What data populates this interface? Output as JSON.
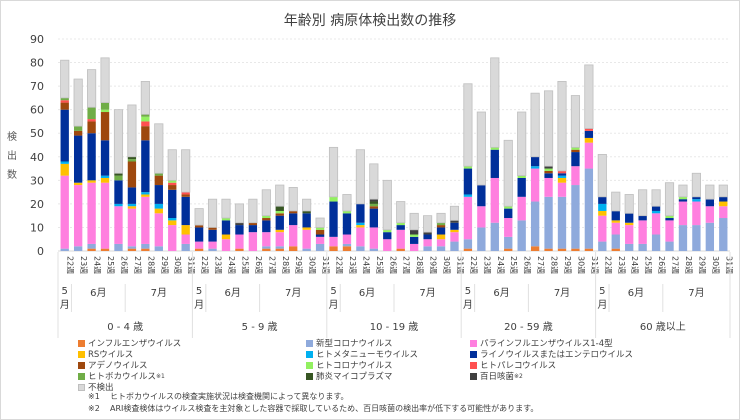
{
  "chart_data": {
    "type": "bar",
    "stacked": true,
    "title": "年齢別 病原体検出数の推移",
    "ylabel": "検出数",
    "xlabel": "",
    "ylim": [
      0,
      90
    ],
    "yticks": [
      0,
      10,
      20,
      30,
      40,
      50,
      60,
      70,
      80,
      90
    ],
    "grid": true,
    "legend_position": "bottom",
    "groups": [
      "0 - 4 歳",
      "5 - 9 歳",
      "10 - 19 歳",
      "20 - 59 歳",
      "60 歳以上"
    ],
    "weeks": [
      "22週",
      "23週",
      "24週",
      "25週",
      "26週",
      "27週",
      "28週",
      "29週",
      "30週",
      "31週"
    ],
    "months": [
      {
        "label": "5月",
        "weeks": 1
      },
      {
        "label": "6月",
        "weeks": 4
      },
      {
        "label": "7月",
        "weeks": 5
      }
    ],
    "series": [
      {
        "name": "インフルエンザウイルス",
        "color": "#ED7D31",
        "values": [
          [
            0,
            0,
            1,
            1,
            0,
            1,
            1,
            0,
            0,
            0
          ],
          [
            1,
            0,
            0,
            1,
            0,
            1,
            1,
            2,
            0,
            0
          ],
          [
            2,
            2,
            0,
            0,
            0,
            1,
            0,
            0,
            0,
            0
          ],
          [
            1,
            0,
            0,
            1,
            0,
            2,
            1,
            1,
            1,
            1
          ],
          [
            0,
            1,
            0,
            0,
            0,
            0,
            0,
            0,
            0,
            0
          ]
        ]
      },
      {
        "name": "新型コロナウイルス",
        "color": "#8FAADC",
        "values": [
          [
            1,
            2,
            2,
            0,
            3,
            1,
            2,
            2,
            0,
            3
          ],
          [
            0,
            1,
            0,
            0,
            0,
            1,
            1,
            0,
            1,
            3
          ],
          [
            0,
            1,
            2,
            1,
            0,
            0,
            0,
            2,
            2,
            4
          ],
          [
            4,
            10,
            12,
            5,
            13,
            19,
            22,
            22,
            27,
            34
          ],
          [
            4,
            6,
            3,
            3,
            7,
            4,
            11,
            11,
            12,
            14
          ]
        ]
      },
      {
        "name": "パラインフルエンザウイルス1-4型",
        "color": "#FF7FDF",
        "values": [
          [
            31,
            26,
            26,
            28,
            16,
            16,
            20,
            14,
            11,
            4
          ],
          [
            3,
            3,
            5,
            6,
            8,
            6,
            6,
            9,
            8,
            3
          ],
          [
            4,
            4,
            8,
            9,
            5,
            8,
            3,
            3,
            3,
            4
          ],
          [
            18,
            9,
            19,
            8,
            10,
            14,
            8,
            6,
            8,
            11
          ],
          [
            11,
            5,
            8,
            10,
            9,
            9,
            10,
            10,
            7,
            5
          ]
        ]
      },
      {
        "name": "RSウイルス",
        "color": "#FFC000",
        "values": [
          [
            5,
            1,
            1,
            2,
            0,
            1,
            1,
            2,
            2,
            4
          ],
          [
            0,
            0,
            2,
            0,
            0,
            0,
            1,
            0,
            1,
            0
          ],
          [
            0,
            0,
            1,
            0,
            0,
            0,
            0,
            0,
            2,
            1
          ],
          [
            0,
            0,
            0,
            0,
            0,
            0,
            0,
            2,
            0,
            2
          ],
          [
            2,
            1,
            1,
            0,
            0,
            0,
            0,
            0,
            0,
            2
          ]
        ]
      },
      {
        "name": "ヒトメタニューモウイルス",
        "color": "#00B0F0",
        "values": [
          [
            1,
            0,
            0,
            1,
            1,
            1,
            1,
            2,
            1,
            0
          ],
          [
            0,
            0,
            0,
            0,
            0,
            0,
            0,
            0,
            0,
            0
          ],
          [
            0,
            0,
            1,
            0,
            0,
            0,
            0,
            0,
            0,
            0
          ],
          [
            1,
            0,
            0,
            0,
            0,
            1,
            0,
            1,
            0,
            0
          ],
          [
            3,
            0,
            0,
            0,
            1,
            0,
            0,
            1,
            0,
            0
          ]
        ]
      },
      {
        "name": "ライノウイルスまたはエンテロウイルス",
        "color": "#002F9A",
        "values": [
          [
            22,
            20,
            20,
            15,
            10,
            7,
            22,
            8,
            12,
            12
          ],
          [
            6,
            5,
            6,
            4,
            3,
            5,
            6,
            5,
            6,
            1
          ],
          [
            15,
            9,
            8,
            8,
            3,
            2,
            3,
            2,
            3,
            3
          ],
          [
            11,
            9,
            12,
            4,
            8,
            4,
            2,
            1,
            6,
            3
          ],
          [
            3,
            4,
            4,
            2,
            2,
            1,
            1,
            1,
            3,
            2
          ]
        ]
      },
      {
        "name": "アデノウイルス",
        "color": "#9E480E",
        "values": [
          [
            3,
            2,
            5,
            12,
            0,
            11,
            6,
            4,
            2,
            1
          ],
          [
            1,
            1,
            0,
            0,
            1,
            1,
            1,
            1,
            0,
            2
          ],
          [
            0,
            0,
            0,
            1,
            0,
            0,
            0,
            0,
            1,
            0
          ],
          [
            0,
            0,
            0,
            0,
            0,
            0,
            1,
            0,
            1,
            0
          ],
          [
            0,
            0,
            0,
            0,
            0,
            0,
            0,
            0,
            0,
            0
          ]
        ]
      },
      {
        "name": "ヒトパレコウイルス",
        "color": "#FF5050",
        "values": [
          [
            1,
            0,
            1,
            0,
            0,
            0,
            2,
            0,
            1,
            1
          ],
          [
            0,
            0,
            0,
            0,
            0,
            0,
            0,
            0,
            0,
            0
          ],
          [
            0,
            0,
            0,
            0,
            0,
            0,
            0,
            0,
            0,
            0
          ],
          [
            0,
            0,
            0,
            0,
            0,
            0,
            0,
            1,
            0,
            1
          ],
          [
            0,
            0,
            0,
            0,
            0,
            0,
            0,
            0,
            0,
            0
          ]
        ]
      },
      {
        "name": "ヒトコロナウイルス",
        "color": "#92F060",
        "values": [
          [
            0,
            0,
            0,
            1,
            0,
            0,
            2,
            0,
            1,
            0
          ],
          [
            0,
            0,
            1,
            0,
            0,
            1,
            1,
            0,
            0,
            1
          ],
          [
            2,
            1,
            0,
            0,
            1,
            1,
            1,
            0,
            0,
            0
          ],
          [
            1,
            0,
            1,
            1,
            1,
            0,
            1,
            0,
            1,
            0
          ],
          [
            0,
            0,
            0,
            0,
            0,
            1,
            1,
            0,
            0,
            0
          ]
        ]
      },
      {
        "name": "ヒトボカウイルス※1",
        "color": "#70AD47",
        "values": [
          [
            1,
            2,
            5,
            3,
            2,
            1,
            1,
            1,
            0,
            0
          ],
          [
            0,
            0,
            0,
            0,
            0,
            0,
            0,
            0,
            0,
            0
          ],
          [
            0,
            0,
            0,
            1,
            0,
            0,
            0,
            0,
            1,
            0
          ],
          [
            0,
            0,
            0,
            0,
            0,
            0,
            0,
            0,
            0,
            0
          ],
          [
            0,
            0,
            0,
            0,
            0,
            0,
            0,
            0,
            0,
            0
          ]
        ]
      },
      {
        "name": "肺炎マイコプラズマ",
        "color": "#375623",
        "values": [
          [
            0,
            0,
            0,
            0,
            1,
            1,
            0,
            0,
            0,
            0
          ],
          [
            0,
            0,
            0,
            0,
            0,
            0,
            2,
            0,
            1,
            0
          ],
          [
            0,
            0,
            0,
            1,
            0,
            0,
            0,
            0,
            0,
            0
          ],
          [
            0,
            0,
            0,
            0,
            0,
            0,
            0,
            0,
            0,
            0
          ],
          [
            0,
            0,
            0,
            0,
            0,
            0,
            0,
            0,
            0,
            0
          ]
        ]
      },
      {
        "name": "百日咳菌※2",
        "color": "#404040",
        "values": [
          [
            0,
            0,
            0,
            0,
            0,
            0,
            0,
            0,
            0,
            0
          ],
          [
            0,
            0,
            0,
            1,
            0,
            0,
            0,
            0,
            0,
            0
          ],
          [
            0,
            0,
            0,
            1,
            0,
            0,
            2,
            1,
            0,
            1
          ],
          [
            0,
            0,
            0,
            0,
            0,
            0,
            1,
            0,
            0,
            0
          ],
          [
            0,
            0,
            0,
            0,
            0,
            0,
            0,
            0,
            0,
            0
          ]
        ]
      },
      {
        "name": "不検出",
        "color": "#D9D9D9",
        "values": [
          [
            16,
            20,
            16,
            19,
            27,
            22,
            14,
            21,
            13,
            18
          ],
          [
            7,
            12,
            8,
            8,
            10,
            11,
            9,
            10,
            5,
            4
          ],
          [
            21,
            7,
            23,
            15,
            21,
            9,
            7,
            7,
            4,
            6
          ],
          [
            35,
            31,
            38,
            28,
            27,
            27,
            32,
            38,
            22,
            27
          ],
          [
            18,
            8,
            8,
            11,
            7,
            14,
            5,
            10,
            6,
            5
          ]
        ]
      }
    ]
  },
  "legend_items": [
    {
      "label": "インフルエンザウイルス",
      "color": "#ED7D31"
    },
    {
      "label": "RSウイルス",
      "color": "#FFC000"
    },
    {
      "label": "アデノウイルス",
      "color": "#9E480E"
    },
    {
      "label": "ヒトボカウイルス",
      "sup": "※1",
      "color": "#70AD47"
    },
    {
      "label": "不検出",
      "color": "#D9D9D9"
    },
    {
      "label": "新型コロナウイルス",
      "color": "#8FAADC"
    },
    {
      "label": "ヒトメタニューモウイルス",
      "color": "#00B0F0"
    },
    {
      "label": "ヒトコロナウイルス",
      "color": "#92F060"
    },
    {
      "label": "肺炎マイコプラズマ",
      "color": "#375623"
    },
    {
      "label": "パラインフルエンザウイルス1-4型",
      "color": "#FF7FDF"
    },
    {
      "label": "ライノウイルスまたはエンテロウイルス",
      "color": "#002F9A"
    },
    {
      "label": "ヒトパレコウイルス",
      "color": "#FF5050"
    },
    {
      "label": "百日咳菌",
      "sup": "※2",
      "color": "#404040"
    }
  ],
  "notes": [
    {
      "mark": "※1",
      "text": "ヒトボカウイルスの検査実施状況は検査機関によって異なります。"
    },
    {
      "mark": "※2",
      "text": "ARI検査検体はウイルス検査を主対象とした容器で採取しているため、百日咳菌の検出率が低下する可能性があります。"
    }
  ]
}
